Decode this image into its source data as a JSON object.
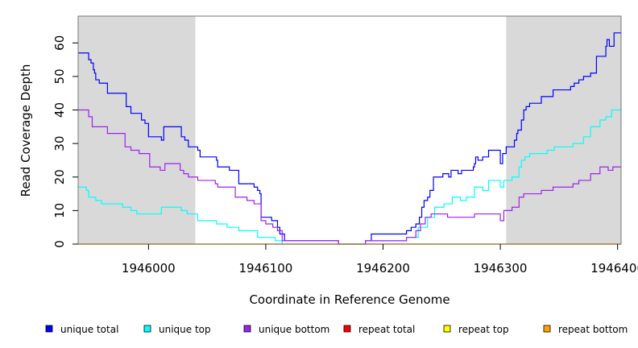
{
  "chart_data": {
    "type": "line",
    "title": "",
    "xlabel": "Coordinate in Reference Genome",
    "ylabel": "Read Coverage Depth",
    "xlim": [
      1945940,
      1946403
    ],
    "ylim": [
      0,
      68
    ],
    "xticks": [
      1946000,
      1946100,
      1946200,
      1946300,
      1946400
    ],
    "xtick_labels": [
      "1946000",
      "1946100",
      "1946200",
      "1946300",
      "1946400"
    ],
    "yticks": [
      0,
      10,
      20,
      30,
      40,
      50,
      60
    ],
    "ytick_labels": [
      "0",
      "10",
      "20",
      "30",
      "40",
      "50",
      "60"
    ],
    "shaded_regions": [
      [
        1945940,
        1946040
      ],
      [
        1946305,
        1946403
      ]
    ],
    "grid": false,
    "legend_position": "bottom",
    "series": [
      {
        "name": "unique total",
        "color": "#0000ff",
        "points": [
          [
            1945940,
            57
          ],
          [
            1945948,
            57
          ],
          [
            1945949,
            55
          ],
          [
            1945951,
            54
          ],
          [
            1945953,
            52
          ],
          [
            1945954,
            51
          ],
          [
            1945955,
            49
          ],
          [
            1945958,
            48
          ],
          [
            1945965,
            45
          ],
          [
            1945981,
            41
          ],
          [
            1945985,
            39
          ],
          [
            1945994,
            37
          ],
          [
            1945997,
            36
          ],
          [
            1946000,
            32
          ],
          [
            1946011,
            31
          ],
          [
            1946013,
            35
          ],
          [
            1946028,
            32
          ],
          [
            1946031,
            31
          ],
          [
            1946034,
            29
          ],
          [
            1946042,
            28
          ],
          [
            1946044,
            26
          ],
          [
            1946058,
            25
          ],
          [
            1946059,
            23
          ],
          [
            1946069,
            22
          ],
          [
            1946077,
            18
          ],
          [
            1946090,
            17
          ],
          [
            1946093,
            16
          ],
          [
            1946095,
            15
          ],
          [
            1946096,
            8
          ],
          [
            1946105,
            7
          ],
          [
            1946110,
            5
          ],
          [
            1946112,
            3
          ],
          [
            1946116,
            1
          ],
          [
            1946140,
            1
          ],
          [
            1946162,
            0
          ],
          [
            1946177,
            0
          ],
          [
            1946185,
            1
          ],
          [
            1946190,
            3
          ],
          [
            1946210,
            3
          ],
          [
            1946220,
            4
          ],
          [
            1946224,
            5
          ],
          [
            1946228,
            6
          ],
          [
            1946231,
            8
          ],
          [
            1946233,
            11
          ],
          [
            1946235,
            13
          ],
          [
            1946238,
            14
          ],
          [
            1946240,
            16
          ],
          [
            1946243,
            20
          ],
          [
            1946251,
            21
          ],
          [
            1946256,
            20
          ],
          [
            1946258,
            22
          ],
          [
            1946264,
            21
          ],
          [
            1946267,
            22
          ],
          [
            1946277,
            23
          ],
          [
            1946278,
            24
          ],
          [
            1946279,
            26
          ],
          [
            1946281,
            25
          ],
          [
            1946285,
            26
          ],
          [
            1946290,
            28
          ],
          [
            1946300,
            24
          ],
          [
            1946302,
            27
          ],
          [
            1946305,
            29
          ],
          [
            1946312,
            31
          ],
          [
            1946314,
            33
          ],
          [
            1946315,
            34
          ],
          [
            1946318,
            37
          ],
          [
            1946320,
            40
          ],
          [
            1946322,
            41
          ],
          [
            1946325,
            42
          ],
          [
            1946335,
            44
          ],
          [
            1946345,
            46
          ],
          [
            1946360,
            47
          ],
          [
            1946363,
            48
          ],
          [
            1946367,
            49
          ],
          [
            1946371,
            50
          ],
          [
            1946377,
            51
          ],
          [
            1946382,
            56
          ],
          [
            1946390,
            59
          ],
          [
            1946391,
            61
          ],
          [
            1946393,
            59
          ],
          [
            1946397,
            63
          ],
          [
            1946403,
            63
          ]
        ]
      },
      {
        "name": "unique top",
        "color": "#00ffff",
        "points": [
          [
            1945940,
            17
          ],
          [
            1945947,
            16
          ],
          [
            1945949,
            14
          ],
          [
            1945955,
            13
          ],
          [
            1945960,
            12
          ],
          [
            1945965,
            12
          ],
          [
            1945978,
            11
          ],
          [
            1945985,
            10
          ],
          [
            1945990,
            9
          ],
          [
            1946004,
            9
          ],
          [
            1946011,
            11
          ],
          [
            1946022,
            11
          ],
          [
            1946028,
            10
          ],
          [
            1946033,
            9
          ],
          [
            1946042,
            7
          ],
          [
            1946058,
            6
          ],
          [
            1946067,
            5
          ],
          [
            1946077,
            4
          ],
          [
            1946086,
            4
          ],
          [
            1946093,
            2
          ],
          [
            1946108,
            1
          ],
          [
            1946114,
            0
          ],
          [
            1946150,
            0
          ],
          [
            1946177,
            0
          ],
          [
            1946185,
            1
          ],
          [
            1946210,
            1
          ],
          [
            1946220,
            2
          ],
          [
            1946230,
            5
          ],
          [
            1946238,
            8
          ],
          [
            1946244,
            11
          ],
          [
            1946252,
            12
          ],
          [
            1946259,
            14
          ],
          [
            1946266,
            13
          ],
          [
            1946271,
            14
          ],
          [
            1946278,
            17
          ],
          [
            1946285,
            16
          ],
          [
            1946290,
            19
          ],
          [
            1946300,
            17
          ],
          [
            1946303,
            19
          ],
          [
            1946310,
            20
          ],
          [
            1946316,
            23
          ],
          [
            1946318,
            25
          ],
          [
            1946321,
            26
          ],
          [
            1946325,
            27
          ],
          [
            1946340,
            28
          ],
          [
            1946346,
            29
          ],
          [
            1946362,
            30
          ],
          [
            1946367,
            30
          ],
          [
            1946371,
            32
          ],
          [
            1946377,
            35
          ],
          [
            1946385,
            37
          ],
          [
            1946390,
            38
          ],
          [
            1946395,
            40
          ],
          [
            1946403,
            40
          ]
        ]
      },
      {
        "name": "unique bottom",
        "color": "#a020f0",
        "points": [
          [
            1945940,
            40
          ],
          [
            1945949,
            38
          ],
          [
            1945952,
            35
          ],
          [
            1945965,
            33
          ],
          [
            1945980,
            29
          ],
          [
            1945985,
            28
          ],
          [
            1945992,
            27
          ],
          [
            1946001,
            23
          ],
          [
            1946010,
            22
          ],
          [
            1946014,
            24
          ],
          [
            1946027,
            22
          ],
          [
            1946030,
            21
          ],
          [
            1946034,
            20
          ],
          [
            1946042,
            19
          ],
          [
            1946057,
            18
          ],
          [
            1946059,
            17
          ],
          [
            1946074,
            14
          ],
          [
            1946084,
            13
          ],
          [
            1946090,
            12
          ],
          [
            1946096,
            7
          ],
          [
            1946100,
            6
          ],
          [
            1946106,
            5
          ],
          [
            1946110,
            4
          ],
          [
            1946114,
            1
          ],
          [
            1946140,
            1
          ],
          [
            1946162,
            0
          ],
          [
            1946177,
            0
          ],
          [
            1946185,
            1
          ],
          [
            1946210,
            1
          ],
          [
            1946220,
            2
          ],
          [
            1946228,
            4
          ],
          [
            1946232,
            6
          ],
          [
            1946236,
            8
          ],
          [
            1946241,
            9
          ],
          [
            1946255,
            8
          ],
          [
            1946278,
            9
          ],
          [
            1946300,
            7
          ],
          [
            1946303,
            10
          ],
          [
            1946310,
            11
          ],
          [
            1946316,
            14
          ],
          [
            1946320,
            15
          ],
          [
            1946335,
            16
          ],
          [
            1946345,
            17
          ],
          [
            1946362,
            18
          ],
          [
            1946367,
            19
          ],
          [
            1946377,
            21
          ],
          [
            1946385,
            23
          ],
          [
            1946392,
            22
          ],
          [
            1946396,
            23
          ],
          [
            1946403,
            23
          ]
        ]
      },
      {
        "name": "repeat total",
        "color": "#ff0000",
        "points": [
          [
            1945940,
            0
          ],
          [
            1946403,
            0
          ]
        ]
      },
      {
        "name": "repeat top",
        "color": "#ffff00",
        "points": [
          [
            1945940,
            0
          ],
          [
            1946403,
            0
          ]
        ]
      },
      {
        "name": "repeat bottom",
        "color": "#ffa500",
        "points": [
          [
            1945940,
            0
          ],
          [
            1946403,
            0
          ]
        ]
      }
    ]
  }
}
